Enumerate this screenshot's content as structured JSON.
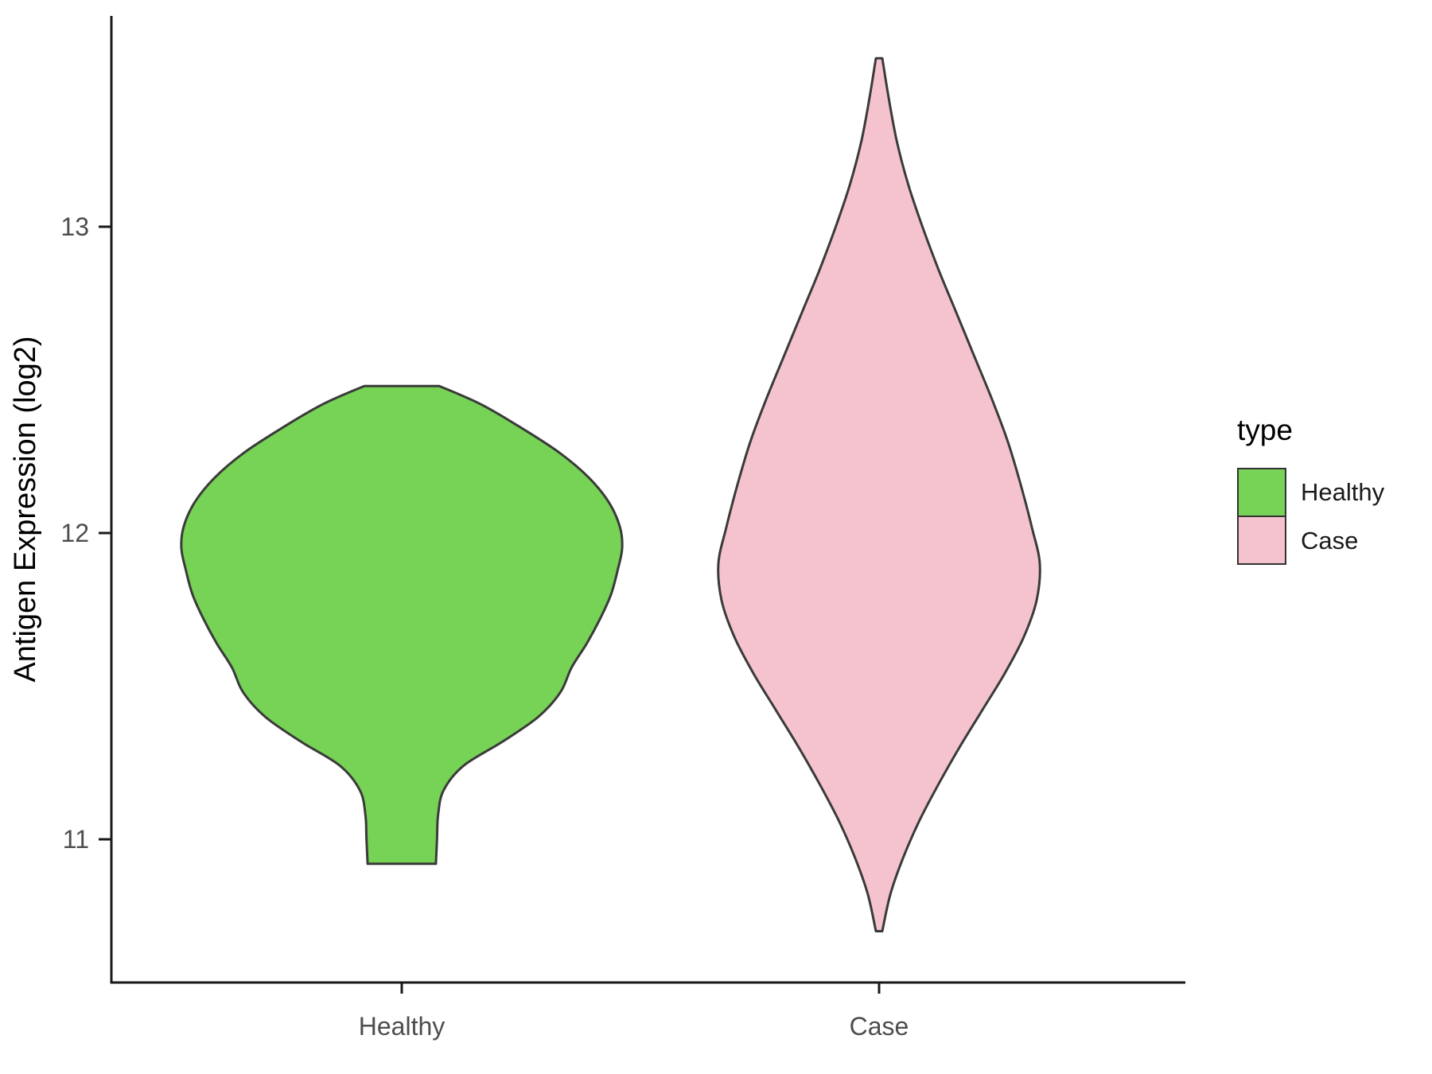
{
  "figure": {
    "background": "#ffffff",
    "axis_color": "#1a1a1a",
    "tick_label_color": "#4d4d4d"
  },
  "legend": {
    "title": "type",
    "entries": [
      {
        "label": "Healthy",
        "color": "#77d355"
      },
      {
        "label": "Case",
        "color": "#f5c3ce"
      }
    ]
  },
  "chart_data": {
    "type": "violin",
    "title": "",
    "xlabel": "",
    "ylabel": "Antigen Expression (log2)",
    "categories": [
      "Healthy",
      "Case"
    ],
    "y_tick_values": [
      11,
      12,
      13
    ],
    "ylim_shown": [
      10.55,
      13.65
    ],
    "grid": false,
    "legend_position": "right",
    "legend_title": "type",
    "series": [
      {
        "name": "Healthy",
        "fill": "#77d355",
        "stroke": "#3a3a3a",
        "y_min": 10.92,
        "y_max": 12.48,
        "profile": [
          [
            12.48,
            0.17
          ],
          [
            12.42,
            0.36
          ],
          [
            12.34,
            0.55
          ],
          [
            12.26,
            0.72
          ],
          [
            12.18,
            0.85
          ],
          [
            12.1,
            0.94
          ],
          [
            12.02,
            0.99
          ],
          [
            11.95,
            1.0
          ],
          [
            11.88,
            0.98
          ],
          [
            11.8,
            0.95
          ],
          [
            11.72,
            0.9
          ],
          [
            11.64,
            0.84
          ],
          [
            11.56,
            0.77
          ],
          [
            11.48,
            0.72
          ],
          [
            11.4,
            0.62
          ],
          [
            11.32,
            0.46
          ],
          [
            11.24,
            0.28
          ],
          [
            11.16,
            0.19
          ],
          [
            11.08,
            0.165
          ],
          [
            11.0,
            0.16
          ],
          [
            10.92,
            0.155
          ]
        ]
      },
      {
        "name": "Case",
        "fill": "#f5c3ce",
        "stroke": "#3a3a3a",
        "y_min": 10.7,
        "y_max": 13.55,
        "profile": [
          [
            13.55,
            0.02
          ],
          [
            13.42,
            0.06
          ],
          [
            13.28,
            0.11
          ],
          [
            13.14,
            0.18
          ],
          [
            13.0,
            0.27
          ],
          [
            12.86,
            0.37
          ],
          [
            12.72,
            0.48
          ],
          [
            12.58,
            0.59
          ],
          [
            12.44,
            0.7
          ],
          [
            12.3,
            0.8
          ],
          [
            12.16,
            0.88
          ],
          [
            12.02,
            0.95
          ],
          [
            11.9,
            1.0
          ],
          [
            11.78,
            0.98
          ],
          [
            11.66,
            0.9
          ],
          [
            11.54,
            0.78
          ],
          [
            11.42,
            0.64
          ],
          [
            11.3,
            0.5
          ],
          [
            11.18,
            0.37
          ],
          [
            11.06,
            0.25
          ],
          [
            10.94,
            0.15
          ],
          [
            10.82,
            0.07
          ],
          [
            10.7,
            0.02
          ]
        ]
      }
    ]
  }
}
